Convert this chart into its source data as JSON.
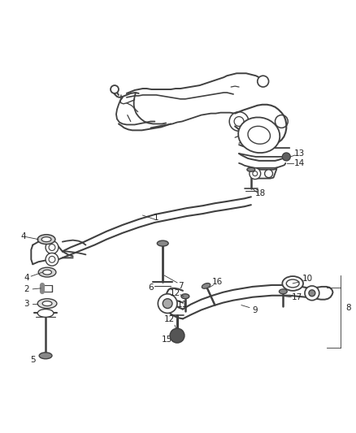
{
  "background_color": "#ffffff",
  "figure_size": [
    4.38,
    5.33
  ],
  "dpi": 100,
  "line_color": "#404040",
  "label_color": "#222222",
  "font_size": 7.5,
  "callout_lw": 0.6
}
